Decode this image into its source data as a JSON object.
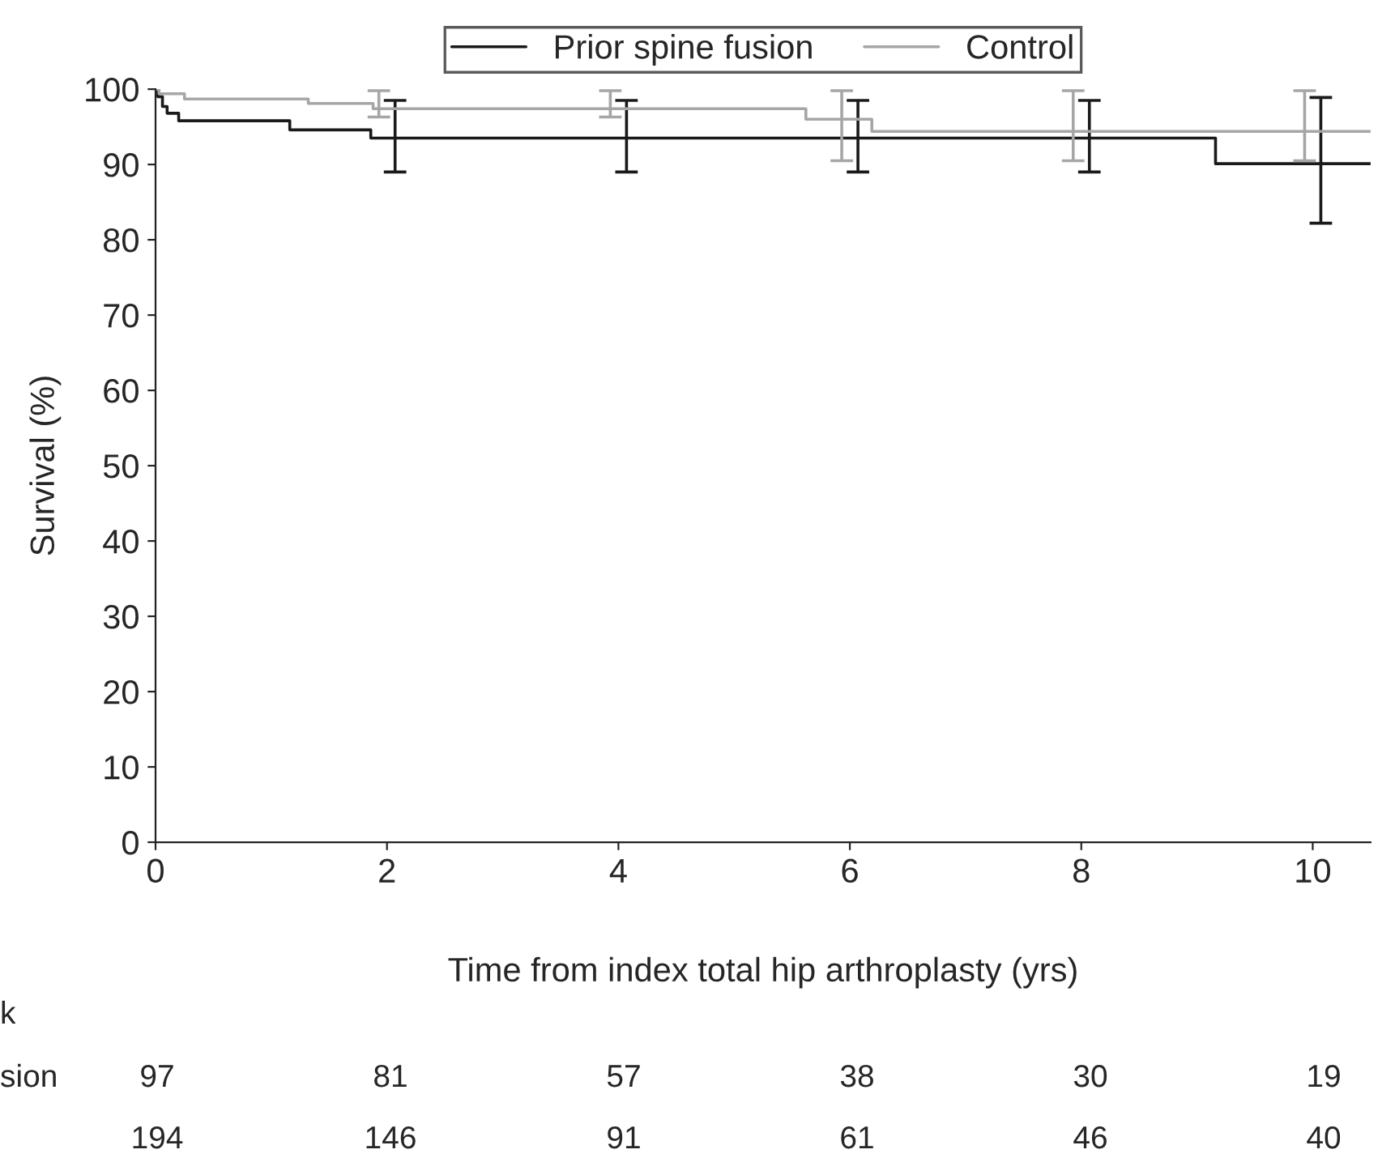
{
  "chart_data": {
    "type": "step",
    "xlabel": "Time from index total hip arthroplasty (yrs)",
    "ylabel": "Survival (%)",
    "xlim": [
      0,
      10.5
    ],
    "ylim": [
      0,
      100
    ],
    "xticks": [
      0,
      2,
      4,
      6,
      8,
      10
    ],
    "yticks": [
      0,
      10,
      20,
      30,
      40,
      50,
      60,
      70,
      80,
      90,
      100
    ],
    "grid": false,
    "legend": "top",
    "marker": "none",
    "line_style": "solid",
    "series": [
      {
        "name": "Prior spine fusion",
        "color": "#1a1a1a",
        "x": [
          0,
          0.02,
          0.06,
          0.1,
          0.2,
          1.16,
          1.86,
          2.07,
          4.07,
          6.07,
          8.07,
          9.16,
          10.07,
          10.5
        ],
        "values": [
          100,
          99,
          97.7,
          96.8,
          95.8,
          94.6,
          93.5,
          93.5,
          93.5,
          93.5,
          93.5,
          90.1,
          90.1,
          90.1
        ],
        "errors": [
          null,
          null,
          null,
          null,
          null,
          null,
          null,
          [
            89.0,
            98.5
          ],
          [
            89.0,
            98.5
          ],
          [
            89.0,
            98.5
          ],
          [
            89.0,
            98.5
          ],
          null,
          [
            82.2,
            98.9
          ],
          null
        ]
      },
      {
        "name": "Control",
        "color": "#a6a6a6",
        "x": [
          0,
          0.03,
          0.25,
          1.32,
          1.88,
          1.93,
          3.93,
          5.62,
          5.93,
          6.19,
          7.93,
          9.93,
          10.5
        ],
        "values": [
          100,
          99.4,
          98.7,
          98.1,
          97.4,
          97.4,
          97.4,
          96.0,
          96.0,
          94.4,
          94.4,
          94.4,
          94.4
        ],
        "errors": [
          null,
          null,
          null,
          null,
          null,
          [
            96.3,
            99.8
          ],
          [
            96.3,
            99.8
          ],
          null,
          [
            90.5,
            99.8
          ],
          null,
          [
            90.5,
            99.8
          ],
          [
            90.5,
            99.8
          ],
          null
        ]
      }
    ],
    "annotations": [
      "k",
      "sion",
      "97",
      "81",
      "57",
      "38",
      "30",
      "19",
      null,
      "194",
      "146",
      "91",
      "61",
      "46",
      "40"
    ]
  }
}
